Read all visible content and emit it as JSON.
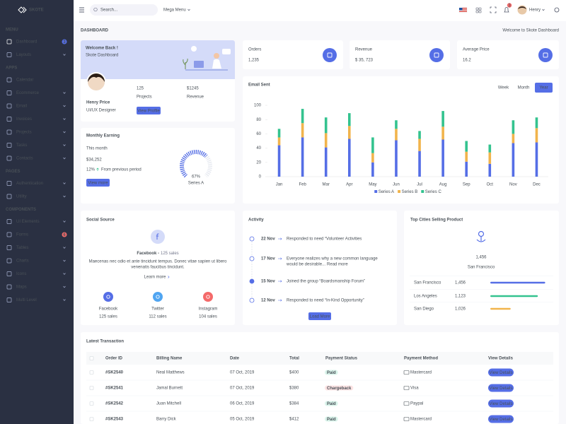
{
  "sidebar": {
    "brand": "SKOTE",
    "sections": [
      {
        "title": "MENU",
        "items": [
          {
            "label": "Dashboard",
            "active": true,
            "badge": "3",
            "badge_color": "#556ee6"
          },
          {
            "label": "Layouts",
            "arrow": true
          }
        ]
      },
      {
        "title": "APPS",
        "items": [
          {
            "label": "Calendar"
          },
          {
            "label": "Ecommerce",
            "arrow": true
          },
          {
            "label": "Email",
            "arrow": true
          },
          {
            "label": "Invoices",
            "arrow": true
          },
          {
            "label": "Projects",
            "arrow": true
          },
          {
            "label": "Tasks",
            "arrow": true
          },
          {
            "label": "Contacts",
            "arrow": true
          }
        ]
      },
      {
        "title": "PAGES",
        "items": [
          {
            "label": "Authentication",
            "arrow": true
          },
          {
            "label": "Utility",
            "arrow": true
          }
        ]
      },
      {
        "title": "COMPONENTS",
        "items": [
          {
            "label": "UI Elements",
            "arrow": true
          },
          {
            "label": "Forms",
            "badge": "6",
            "badge_color": "#f46a6a"
          },
          {
            "label": "Tables",
            "arrow": true
          },
          {
            "label": "Charts",
            "arrow": true
          },
          {
            "label": "Icons",
            "arrow": true
          },
          {
            "label": "Maps",
            "arrow": true
          },
          {
            "label": "Multi Level",
            "arrow": true
          }
        ]
      }
    ]
  },
  "topbar": {
    "search_placeholder": "Search...",
    "mega_menu": "Mega Menu",
    "notification_count": "3",
    "user": "Henry"
  },
  "page": {
    "title": "DASHBOARD",
    "breadcrumb": "Welcome to Skote Dashboard"
  },
  "welcome": {
    "title": "Welcome Back !",
    "subtitle": "Skote Dashboard",
    "name": "Henry Price",
    "role": "UI/UX Designer",
    "stats": [
      {
        "value": "125",
        "label": "Projects"
      },
      {
        "value": "$1245",
        "label": "Revenue"
      }
    ],
    "button": "View Profile"
  },
  "earning": {
    "title": "Monthly Earning",
    "period": "This month",
    "amount": "$34,252",
    "change": "12%",
    "change_label": "From previous period",
    "button": "View more",
    "gauge": {
      "value": 67,
      "value_label": "67%",
      "name": "Series A"
    }
  },
  "stats": [
    {
      "label": "Orders",
      "value": "1,235"
    },
    {
      "label": "Revenue",
      "value": "$ 35, 723"
    },
    {
      "label": "Average Price",
      "value": "16.2"
    }
  ],
  "email_sent_tabs": [
    {
      "label": "Week"
    },
    {
      "label": "Month"
    },
    {
      "label": "Year",
      "active": true
    }
  ],
  "chart_data": {
    "type": "bar",
    "stacked": true,
    "title": "Email Sent",
    "categories": [
      "Jan",
      "Feb",
      "Mar",
      "Apr",
      "May",
      "Jun",
      "Jul",
      "Aug",
      "Sep",
      "Oct",
      "Nov",
      "Dec"
    ],
    "series": [
      {
        "name": "Series A",
        "color": "#556ee6",
        "values": [
          44,
          55,
          41,
          53,
          20,
          51,
          36,
          52,
          21,
          18,
          47,
          48
        ]
      },
      {
        "name": "Series B",
        "color": "#f1b44c",
        "values": [
          11,
          20,
          20,
          18,
          13,
          16,
          17,
          18,
          14,
          16,
          13,
          20
        ]
      },
      {
        "name": "Series C",
        "color": "#34c38f",
        "values": [
          12,
          20,
          22,
          18,
          22,
          12,
          11,
          22,
          15,
          11,
          19,
          15
        ]
      }
    ],
    "ylim": [
      0,
      100
    ],
    "yticks": [
      0,
      20,
      40,
      60,
      80,
      100
    ],
    "grid": false,
    "legend": "bottom"
  },
  "social": {
    "title": "Social Source",
    "headline": "Facebook -",
    "headline_sales": "125 sales",
    "description": [
      "Maecenas nec odio et ante tincidunt tempus. Donec vitae sapien ut libero",
      "venenatis faucibus tincidunt."
    ],
    "link": "Learn more",
    "items": [
      {
        "name": "Facebook",
        "sales": "125 sales",
        "color": "#556ee6"
      },
      {
        "name": "Twitter",
        "sales": "112 sales",
        "color": "#50a5f1"
      },
      {
        "name": "Instagram",
        "sales": "104 sales",
        "color": "#f46a6a"
      }
    ]
  },
  "activity": {
    "title": "Activity",
    "button": "Load More",
    "items": [
      {
        "date": "22 Nov",
        "lines": [
          "Responded to need “Volunteer Activities"
        ]
      },
      {
        "date": "17 Nov",
        "lines": [
          "Everyone realizes why a new common language",
          "would be desirable..."
        ],
        "link": "Read more"
      },
      {
        "date": "15 Nov",
        "lines": [
          "Joined the group “Boardsmanship Forum”"
        ],
        "highlight": true
      },
      {
        "date": "12 Nov",
        "lines": [
          "Responded to need “In-Kind Opportunity”"
        ]
      }
    ]
  },
  "top_cities": {
    "title": "Top Cities Selling Product",
    "value": "1,456",
    "city": "San Francisco",
    "rows": [
      {
        "city": "San Francisco",
        "value": "1,456",
        "progress": 97,
        "color": "#556ee6"
      },
      {
        "city": "Los Angeles",
        "value": "1,123",
        "progress": 84,
        "color": "#34c38f"
      },
      {
        "city": "San Diego",
        "value": "1,026",
        "progress": 36,
        "color": "#f1b44c"
      }
    ]
  },
  "transactions": {
    "title": "Latest Transaction",
    "button": "View Details",
    "columns": [
      "Order ID",
      "Billing Name",
      "Date",
      "Total",
      "Payment Status",
      "Payment Method",
      "View Details"
    ],
    "rows": [
      {
        "order_id": "#SK2540",
        "billing_name": "Neal Matthews",
        "date": "07 Oct, 2019",
        "total": "$400",
        "status": "Paid",
        "status_color": "#34c38f",
        "method": "Mastercard"
      },
      {
        "order_id": "#SK2541",
        "billing_name": "Jamal Burnett",
        "date": "07 Oct, 2019",
        "total": "$380",
        "status": "Chargeback",
        "status_color": "#f46a6a",
        "method": "Visa"
      },
      {
        "order_id": "#SK2542",
        "billing_name": "Juan Mitchell",
        "date": "06 Oct, 2019",
        "total": "$384",
        "status": "Paid",
        "status_color": "#34c38f",
        "method": "Paypal"
      },
      {
        "order_id": "#SK2543",
        "billing_name": "Barry Dick",
        "date": "05 Oct, 2019",
        "total": "$412",
        "status": "Paid",
        "status_color": "#34c38f",
        "method": "Mastercard"
      }
    ]
  }
}
